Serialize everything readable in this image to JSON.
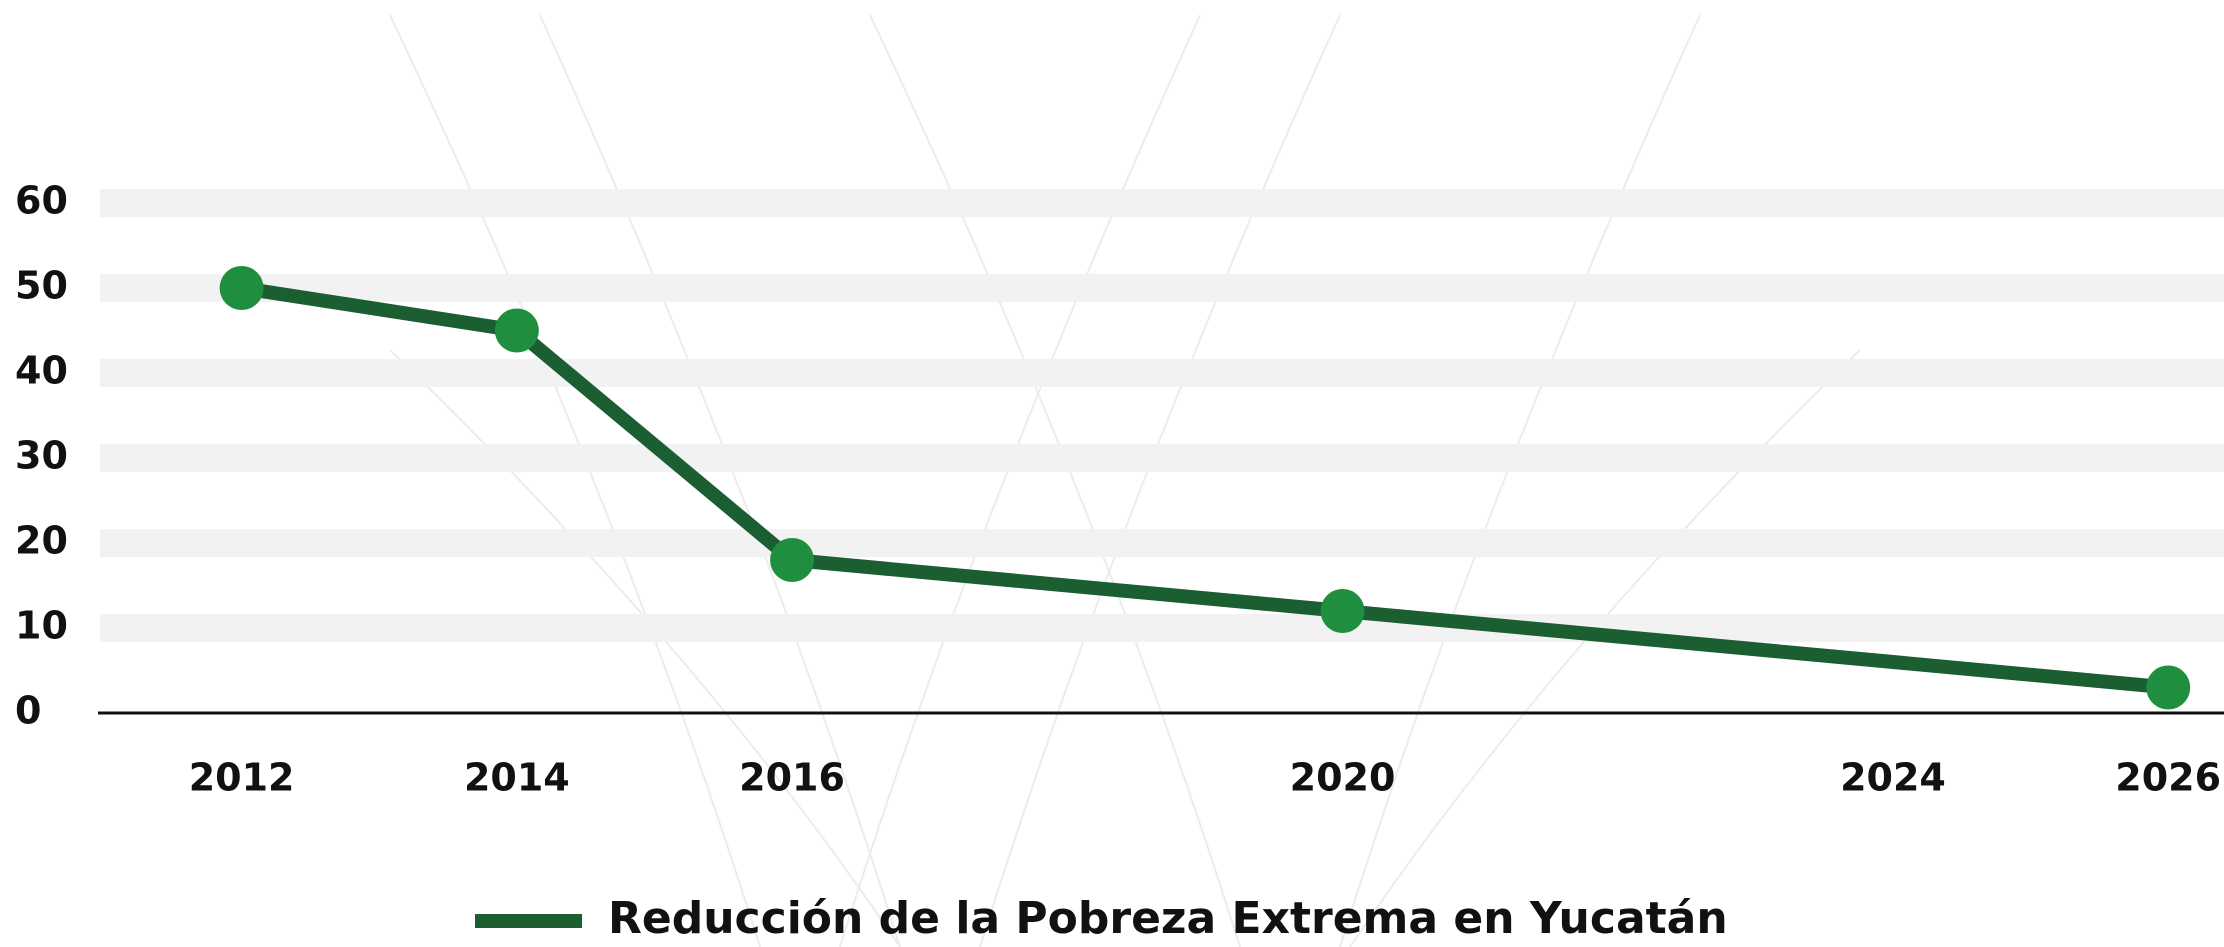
{
  "chart_data": {
    "type": "line",
    "x": [
      2012,
      2014,
      2016,
      2020,
      2026
    ],
    "series": [
      {
        "name": "Reducción de la Pobreza Extrema en Yucatán",
        "color": "#1b5e32",
        "marker_color": "#1f8f3f",
        "values": [
          50,
          45,
          18,
          12,
          3
        ]
      }
    ],
    "xlim": [
      2011,
      2026.5
    ],
    "xticks": [
      2012,
      2014,
      2016,
      2020,
      2024,
      2026
    ],
    "ylim": [
      0,
      60
    ],
    "yticks": [
      0,
      10,
      20,
      30,
      40,
      50,
      60
    ],
    "grid": true,
    "legend": "bottom"
  }
}
